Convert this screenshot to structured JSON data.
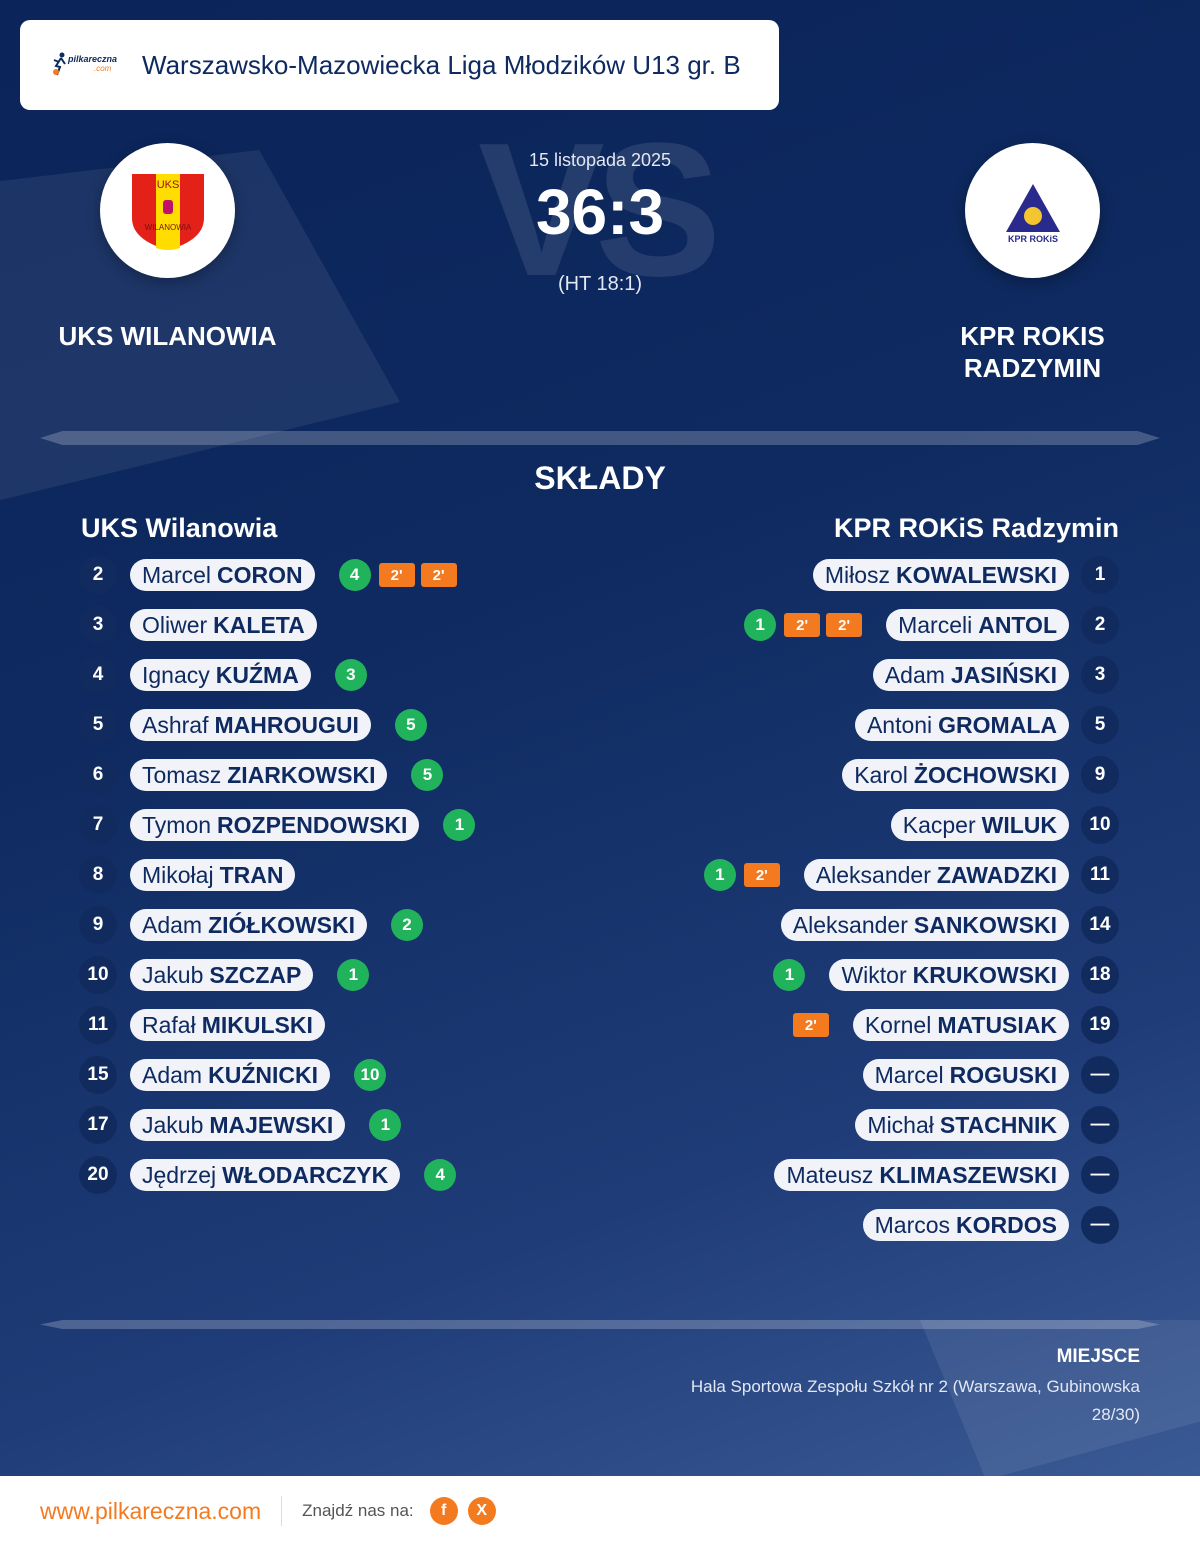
{
  "league": {
    "title": "Warszawsko-Mazowiecka Liga Młodzików U13 gr. B",
    "logo_text": "pilkareczna",
    "logo_sub": ".com"
  },
  "match": {
    "date": "15 listopada 2025",
    "score": "36:3",
    "halftime": "(HT 18:1)",
    "vs": "VS"
  },
  "home": {
    "name": "UKS WILANOWIA",
    "crest_text_top": "UKS",
    "crest_text_bottom": "WILANOWIA",
    "colors": [
      "#ffdd00",
      "#e32119"
    ],
    "lineup_title": "UKS Wilanowia",
    "players": [
      {
        "number": "2",
        "first": "Marcel",
        "last": "CORON",
        "goals": "4",
        "suspensions": [
          "2'",
          "2'"
        ]
      },
      {
        "number": "3",
        "first": "Oliwer",
        "last": "KALETA",
        "goals": null,
        "suspensions": []
      },
      {
        "number": "4",
        "first": "Ignacy",
        "last": "KUŹMA",
        "goals": "3",
        "suspensions": []
      },
      {
        "number": "5",
        "first": "Ashraf",
        "last": "MAHROUGUI",
        "goals": "5",
        "suspensions": []
      },
      {
        "number": "6",
        "first": "Tomasz",
        "last": "ZIARKOWSKI",
        "goals": "5",
        "suspensions": []
      },
      {
        "number": "7",
        "first": "Tymon",
        "last": "ROZPENDOWSKI",
        "goals": "1",
        "suspensions": []
      },
      {
        "number": "8",
        "first": "Mikołaj",
        "last": "TRAN",
        "goals": null,
        "suspensions": []
      },
      {
        "number": "9",
        "first": "Adam",
        "last": "ZIÓŁKOWSKI",
        "goals": "2",
        "suspensions": []
      },
      {
        "number": "10",
        "first": "Jakub",
        "last": "SZCZAP",
        "goals": "1",
        "suspensions": []
      },
      {
        "number": "11",
        "first": "Rafał",
        "last": "MIKULSKI",
        "goals": null,
        "suspensions": []
      },
      {
        "number": "15",
        "first": "Adam",
        "last": "KUŹNICKI",
        "goals": "10",
        "suspensions": []
      },
      {
        "number": "17",
        "first": "Jakub",
        "last": "MAJEWSKI",
        "goals": "1",
        "suspensions": []
      },
      {
        "number": "20",
        "first": "Jędrzej",
        "last": "WŁODARCZYK",
        "goals": "4",
        "suspensions": []
      }
    ]
  },
  "away": {
    "name": "KPR ROKIS RADZYMIN",
    "crest_text": "KPR ROKIS",
    "colors": [
      "#2a2a8c",
      "#f2c531"
    ],
    "lineup_title": "KPR ROKiS Radzymin",
    "players": [
      {
        "number": "1",
        "first": "Miłosz",
        "last": "KOWALEWSKI",
        "goals": null,
        "suspensions": []
      },
      {
        "number": "2",
        "first": "Marceli",
        "last": "ANTOL",
        "goals": "1",
        "suspensions": [
          "2'",
          "2'"
        ]
      },
      {
        "number": "3",
        "first": "Adam",
        "last": "JASIŃSKI",
        "goals": null,
        "suspensions": []
      },
      {
        "number": "5",
        "first": "Antoni",
        "last": "GROMALA",
        "goals": null,
        "suspensions": []
      },
      {
        "number": "9",
        "first": "Karol",
        "last": "ŻOCHOWSKI",
        "goals": null,
        "suspensions": []
      },
      {
        "number": "10",
        "first": "Kacper",
        "last": "WILUK",
        "goals": null,
        "suspensions": []
      },
      {
        "number": "11",
        "first": "Aleksander",
        "last": "ZAWADZKI",
        "goals": "1",
        "suspensions": [
          "2'"
        ]
      },
      {
        "number": "14",
        "first": "Aleksander",
        "last": "SANKOWSKI",
        "goals": null,
        "suspensions": []
      },
      {
        "number": "18",
        "first": "Wiktor",
        "last": "KRUKOWSKI",
        "goals": "1",
        "suspensions": []
      },
      {
        "number": "19",
        "first": "Kornel",
        "last": "MATUSIAK",
        "goals": null,
        "suspensions": [
          "2'"
        ]
      },
      {
        "number": "—",
        "first": "Marcel",
        "last": "ROGUSKI",
        "goals": null,
        "suspensions": []
      },
      {
        "number": "—",
        "first": "Michał",
        "last": "STACHNIK",
        "goals": null,
        "suspensions": []
      },
      {
        "number": "—",
        "first": "Mateusz",
        "last": "KLIMASZEWSKI",
        "goals": null,
        "suspensions": []
      },
      {
        "number": "—",
        "first": "Marcos",
        "last": "KORDOS",
        "goals": null,
        "suspensions": []
      }
    ]
  },
  "section": {
    "title": "SKŁADY"
  },
  "venue": {
    "label": "MIEJSCE",
    "text": "Hala Sportowa Zespołu Szkół nr 2 (Warszawa, Gubinowska 28/30)"
  },
  "footer": {
    "site": "www.pilkareczna.com",
    "find": "Znajdź nas na:",
    "social": [
      {
        "icon": "facebook-icon",
        "label": "f"
      },
      {
        "icon": "x-icon",
        "label": "X"
      }
    ]
  },
  "accent": "#f47a1f"
}
